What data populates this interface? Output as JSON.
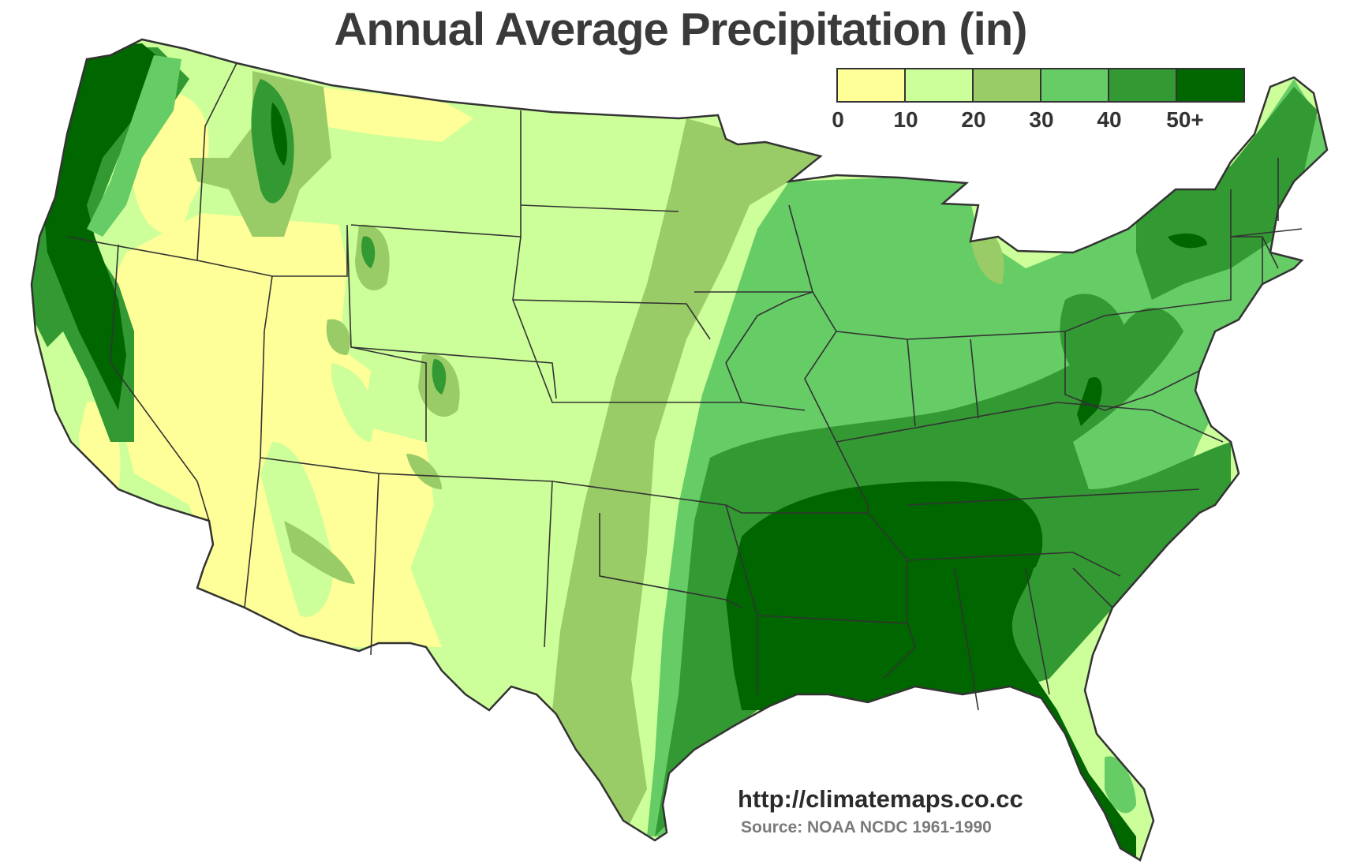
{
  "title": "Annual Average Precipitation (in)",
  "colors": {
    "c0": "#ffff99",
    "c10": "#ccff99",
    "c20": "#99cc66",
    "c30": "#66cc66",
    "c40": "#339933",
    "c50": "#006600",
    "border": "#333333"
  },
  "legend": {
    "swatches": [
      {
        "range": "0-10",
        "color": "#ffff99"
      },
      {
        "range": "10-20",
        "color": "#ccff99"
      },
      {
        "range": "20-30",
        "color": "#99cc66"
      },
      {
        "range": "30-40",
        "color": "#66cc66"
      },
      {
        "range": "40-50",
        "color": "#339933"
      },
      {
        "range": "50+",
        "color": "#006600"
      }
    ],
    "ticks": [
      "0",
      "10",
      "20",
      "30",
      "40",
      "50+"
    ]
  },
  "website": "http://climatemaps.co.cc",
  "source": "Source: NOAA NCDC 1961-1990"
}
